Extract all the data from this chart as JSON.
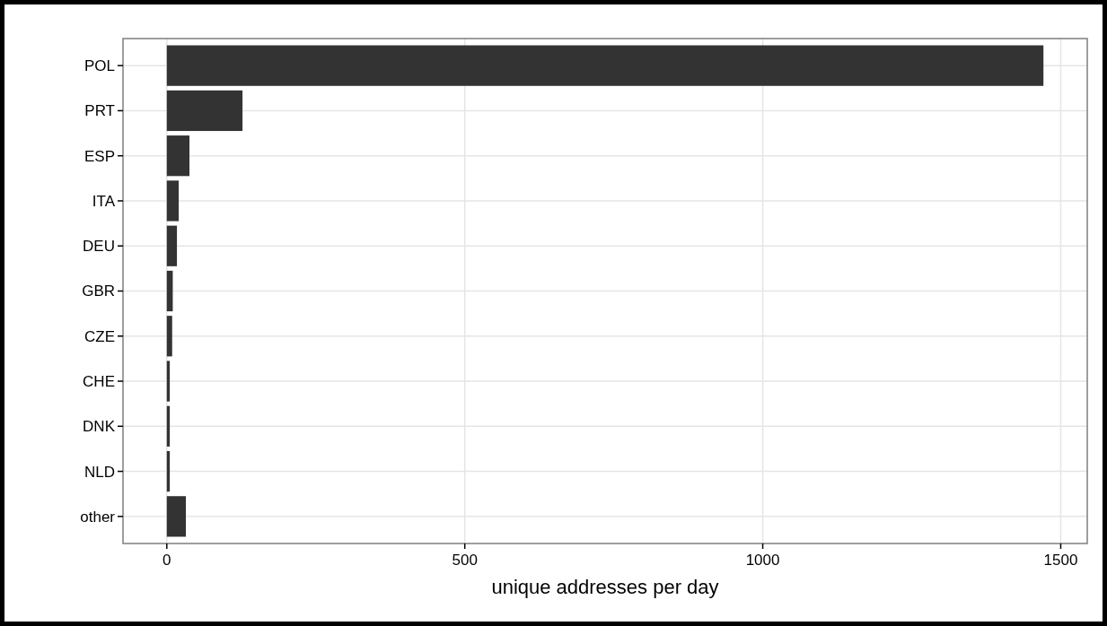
{
  "chart_data": {
    "type": "bar",
    "orientation": "horizontal",
    "xlabel": "unique addresses per day",
    "categories": [
      "POL",
      "PRT",
      "ESP",
      "ITA",
      "DEU",
      "GBR",
      "CZE",
      "CHE",
      "DNK",
      "NLD",
      "other"
    ],
    "values": [
      1471,
      127,
      38,
      20,
      17,
      10,
      9,
      5,
      5,
      5,
      32
    ],
    "color": "#333333",
    "xlim": [
      -73.5,
      1544.5
    ],
    "xticks": [
      0,
      500,
      1000,
      1500
    ],
    "grid": true
  }
}
